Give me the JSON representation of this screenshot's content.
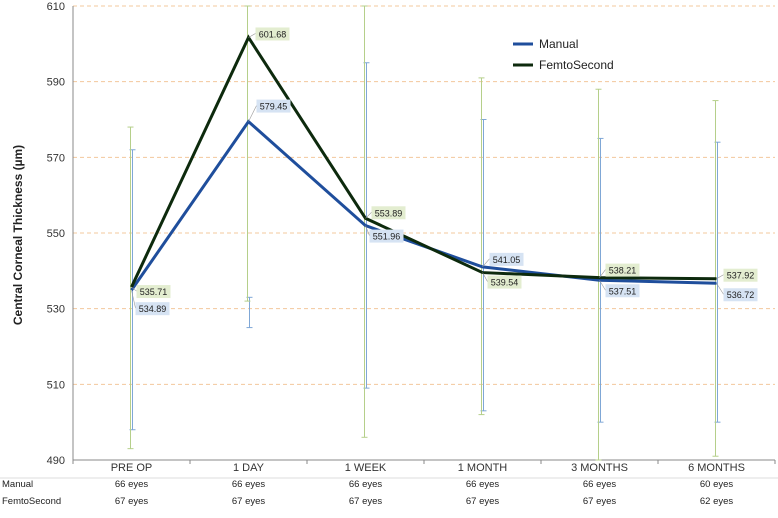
{
  "chart_data": {
    "type": "line",
    "ylabel": "Central Corneal Thickness (µm)",
    "xlabel": "",
    "ylim": [
      490,
      610
    ],
    "yticks": [
      490,
      510,
      530,
      550,
      570,
      590,
      610
    ],
    "grid": "horizontal dashed",
    "legend_position": "top-right",
    "categories": [
      "PRE OP",
      "1 DAY",
      "1 WEEK",
      "1 MONTH",
      "3 MONTHS",
      "6 MONTHS"
    ],
    "series": [
      {
        "name": "Manual",
        "color": "#1f4e9c",
        "values": [
          534.89,
          579.45,
          551.96,
          541.05,
          537.51,
          536.72
        ],
        "labels": [
          "534.89",
          "579.45",
          "551.96",
          "541.05",
          "537.51",
          "536.72"
        ],
        "error_low": [
          498,
          525,
          509,
          503,
          500,
          500
        ],
        "error_high": [
          572,
          533,
          595,
          580,
          575,
          574
        ],
        "label_fill": "#d6e3f3"
      },
      {
        "name": "FemtoSecond",
        "color": "#0d2a0d",
        "values": [
          535.71,
          601.68,
          553.89,
          539.54,
          538.21,
          537.92
        ],
        "labels": [
          "535.71",
          "601.68",
          "553.89",
          "539.54",
          "538.21",
          "537.92"
        ],
        "error_low": [
          493,
          532,
          496,
          502,
          490,
          491
        ],
        "error_high": [
          578,
          610,
          610,
          591,
          588,
          585
        ],
        "label_fill": "#e3edd0"
      }
    ],
    "error_bar_color_manual": "#7fa7d6",
    "error_bar_color_femto": "#b5cf8a",
    "table": {
      "rows": [
        {
          "label": "Manual",
          "values": [
            "66 eyes",
            "66 eyes",
            "66 eyes",
            "66 eyes",
            "66 eyes",
            "60 eyes"
          ]
        },
        {
          "label": "FemtoSecond",
          "values": [
            "67 eyes",
            "67 eyes",
            "67 eyes",
            "67 eyes",
            "67 eyes",
            "62 eyes"
          ]
        }
      ]
    }
  }
}
